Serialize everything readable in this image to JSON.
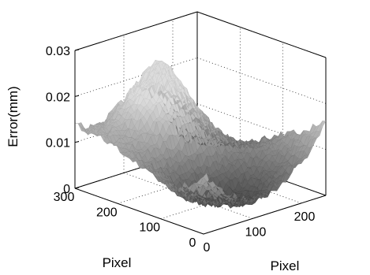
{
  "chart_data": {
    "type": "surface3d",
    "title": "",
    "xlabel": "Pixel",
    "ylabel": "Pixel",
    "zlabel": "Error(mm)",
    "xlim": [
      0,
      250
    ],
    "ylim": [
      0,
      300
    ],
    "zlim": [
      0,
      0.03
    ],
    "x_ticks": [
      "0",
      "100",
      "200"
    ],
    "y_ticks": [
      "0",
      "100",
      "200",
      "300"
    ],
    "z_ticks": [
      "0",
      "0.01",
      "0.02",
      "0.03"
    ],
    "grid": true,
    "colormap": "gray",
    "grid_samples": {
      "x": [
        0,
        25,
        50,
        75,
        100,
        125,
        150,
        175,
        200,
        225,
        250
      ],
      "y": [
        0,
        30,
        60,
        90,
        120,
        150,
        180,
        210,
        240,
        270,
        300
      ],
      "z": [
        [
          0.013,
          0.01,
          0.007,
          0.005,
          0.004,
          0.004,
          0.005,
          0.007,
          0.009,
          0.011,
          0.016
        ],
        [
          0.01,
          0.007,
          0.004,
          0.003,
          0.002,
          0.002,
          0.003,
          0.005,
          0.007,
          0.01,
          0.014
        ],
        [
          0.008,
          0.005,
          0.003,
          0.002,
          0.001,
          0.001,
          0.002,
          0.004,
          0.006,
          0.009,
          0.012
        ],
        [
          0.008,
          0.005,
          0.003,
          0.002,
          0.002,
          0.002,
          0.003,
          0.005,
          0.007,
          0.009,
          0.011
        ],
        [
          0.009,
          0.007,
          0.005,
          0.004,
          0.004,
          0.005,
          0.006,
          0.007,
          0.008,
          0.008,
          0.009
        ],
        [
          0.01,
          0.009,
          0.008,
          0.008,
          0.009,
          0.01,
          0.01,
          0.009,
          0.008,
          0.007,
          0.007
        ],
        [
          0.011,
          0.011,
          0.012,
          0.013,
          0.015,
          0.016,
          0.015,
          0.012,
          0.009,
          0.006,
          0.005
        ],
        [
          0.012,
          0.012,
          0.013,
          0.016,
          0.019,
          0.021,
          0.019,
          0.014,
          0.009,
          0.005,
          0.004
        ],
        [
          0.013,
          0.013,
          0.014,
          0.018,
          0.022,
          0.026,
          0.022,
          0.015,
          0.009,
          0.005,
          0.003
        ],
        [
          0.013,
          0.013,
          0.014,
          0.017,
          0.02,
          0.023,
          0.02,
          0.014,
          0.008,
          0.004,
          0.002
        ],
        [
          0.014,
          0.012,
          0.012,
          0.014,
          0.016,
          0.018,
          0.016,
          0.012,
          0.007,
          0.003,
          0.002
        ]
      ]
    }
  }
}
